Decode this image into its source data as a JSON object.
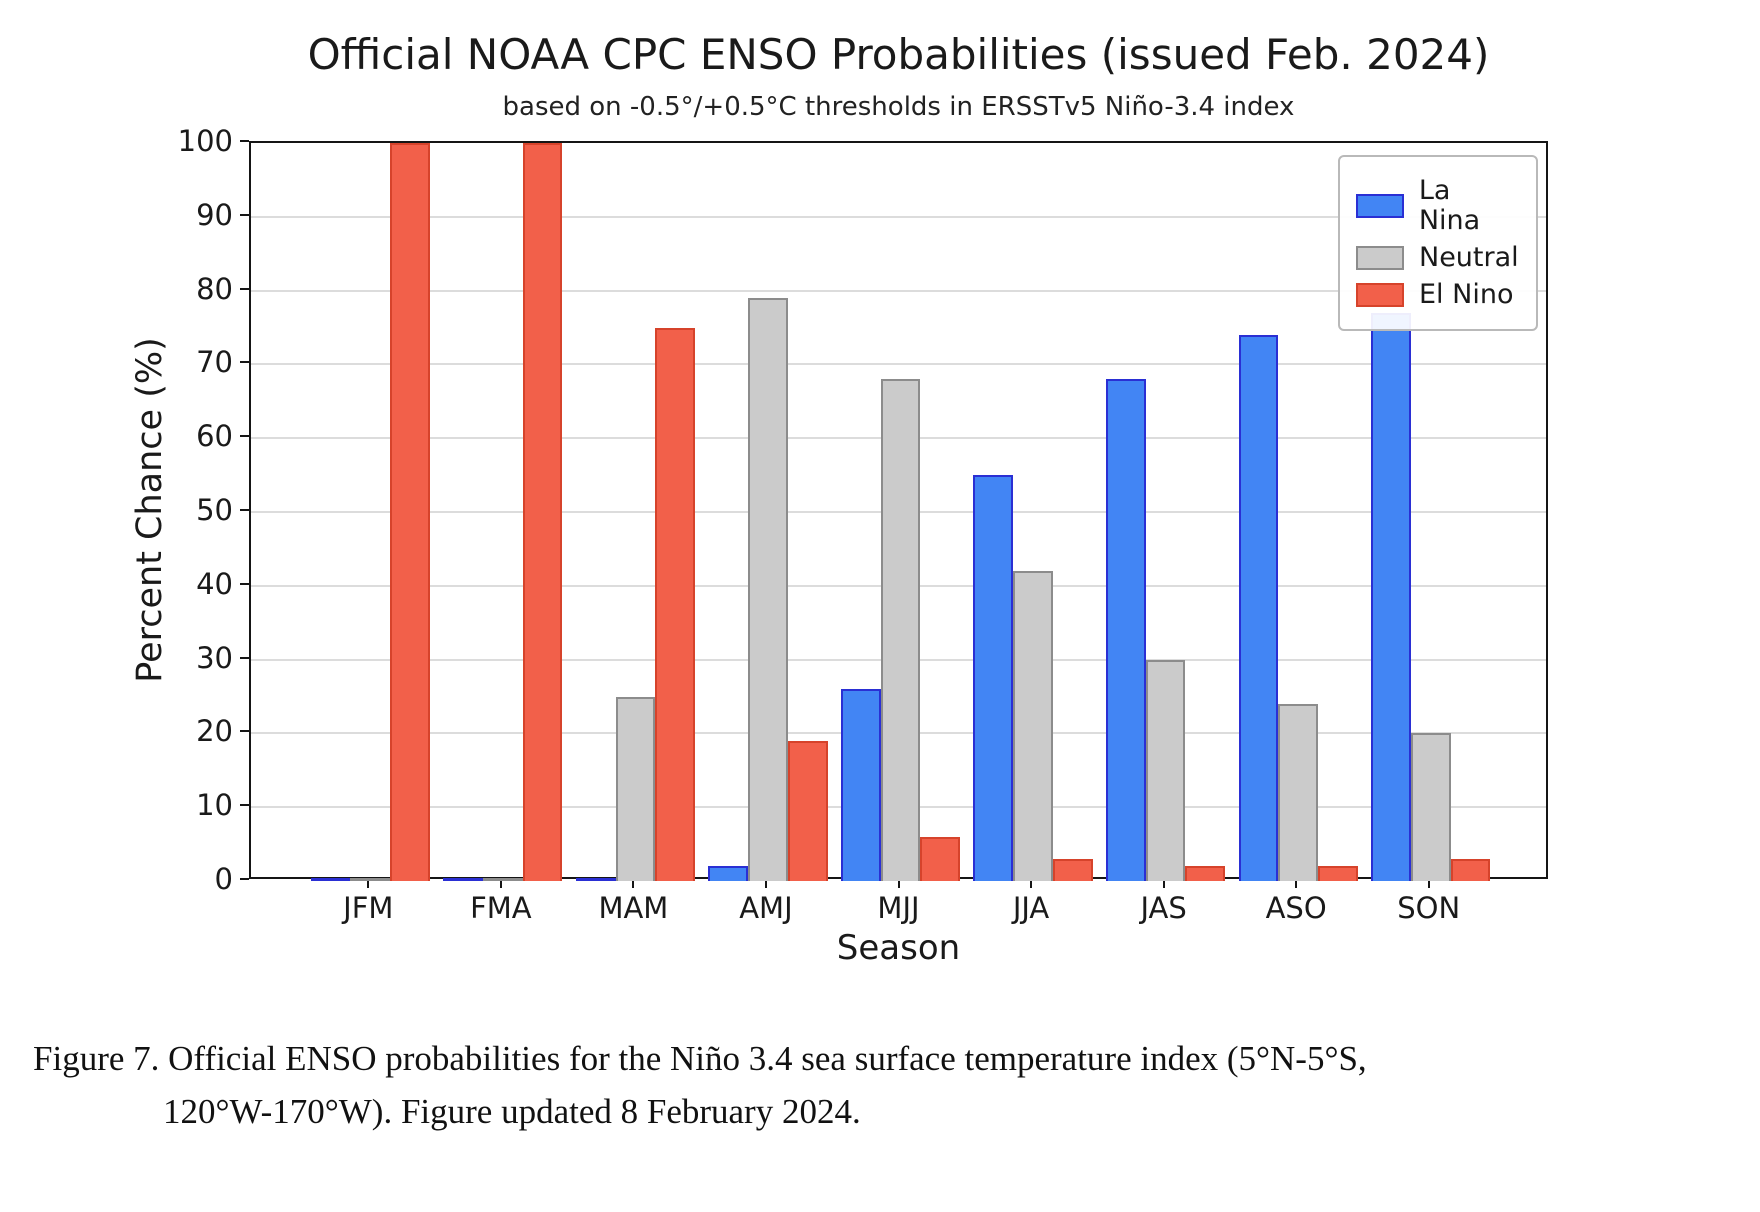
{
  "title": "Official NOAA CPC ENSO Probabilities (issued Feb. 2024)",
  "subtitle": "based on -0.5°/+0.5°C thresholds in ERSSTv5 Niño-3.4 index",
  "chart_data": {
    "type": "bar",
    "categories": [
      "JFM",
      "FMA",
      "MAM",
      "AMJ",
      "MJJ",
      "JJA",
      "JAS",
      "ASO",
      "SON"
    ],
    "series": [
      {
        "name": "La Nina",
        "color": "#4285f4",
        "edge_color": "#2a2fd4",
        "values": [
          0,
          0,
          0,
          2,
          26,
          55,
          68,
          74,
          77
        ]
      },
      {
        "name": "Neutral",
        "color": "#cbcbcb",
        "edge_color": "#8c8c8c",
        "values": [
          0,
          0,
          25,
          79,
          68,
          42,
          30,
          24,
          20
        ]
      },
      {
        "name": "El Nino",
        "color": "#f2604a",
        "edge_color": "#d6432b",
        "values": [
          100,
          100,
          75,
          19,
          6,
          3,
          2,
          2,
          3
        ]
      }
    ],
    "xlabel": "Season",
    "ylabel": "Percent Chance (%)",
    "ylim": [
      0,
      100
    ],
    "yticks": [
      0,
      10,
      20,
      30,
      40,
      50,
      60,
      70,
      80,
      90,
      100
    ],
    "grid": true,
    "legend_position": "upper right"
  },
  "caption": {
    "lines": [
      "Figure 7. Official ENSO probabilities for the Niño 3.4 sea surface temperature index (5°N-5°S,",
      "120°W-170°W). Figure updated 8 February 2024."
    ]
  }
}
